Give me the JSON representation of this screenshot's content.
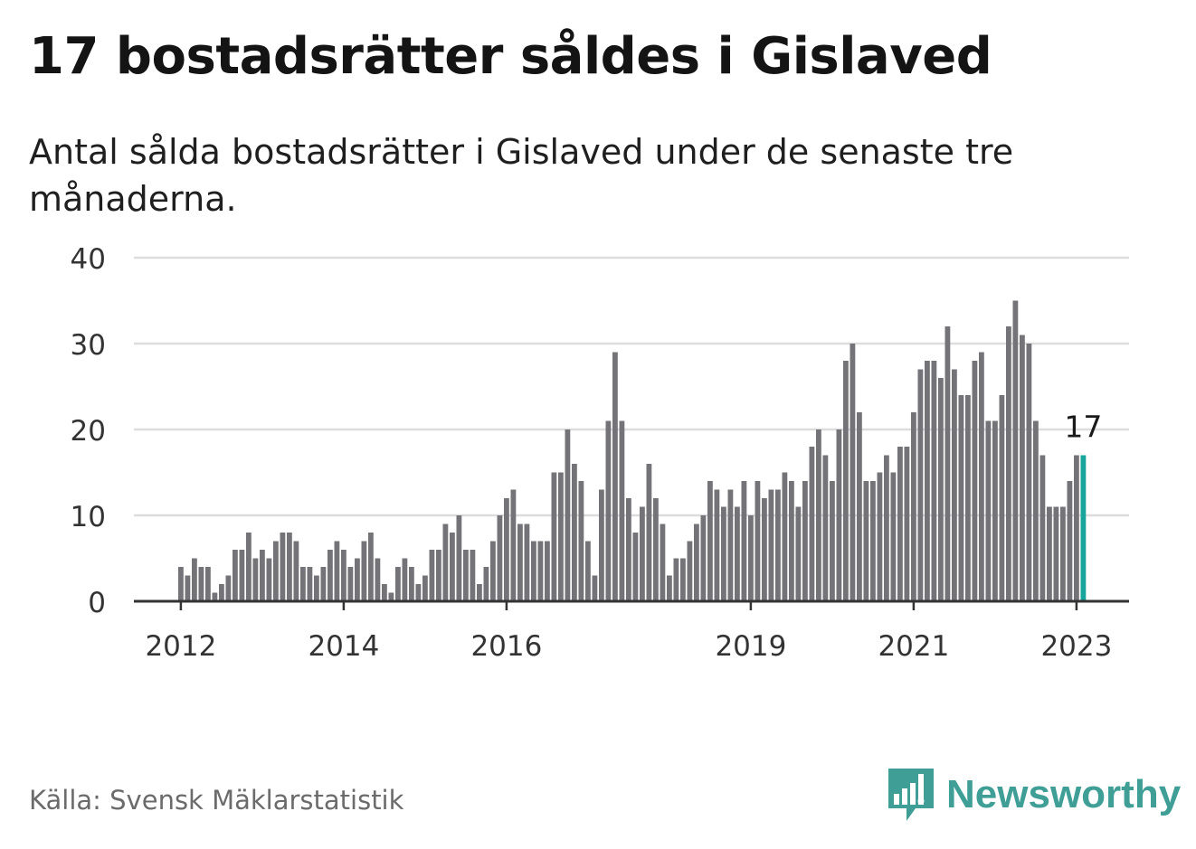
{
  "title": "17 bostadsrätter såldes i Gislaved",
  "subtitle": "Antal sålda bostadsrätter i Gislaved under de senaste tre månaderna.",
  "source": "Källa: Svensk Mäklarstatistik",
  "brand": {
    "name": "Newsworthy",
    "icon": "newsworthy-bar-chart-icon"
  },
  "colors": {
    "bar": "#747378",
    "highlight": "#17a59b",
    "grid": "#dcdcdc",
    "axis": "#333333",
    "brand": "#3f9f97"
  },
  "chart_data": {
    "type": "bar",
    "title": "",
    "xlabel": "",
    "ylabel": "",
    "ylim": [
      0,
      40
    ],
    "yticks": [
      0,
      10,
      20,
      30,
      40
    ],
    "grid": true,
    "start_month": "2012-01",
    "values": [
      4,
      3,
      5,
      4,
      4,
      1,
      2,
      3,
      6,
      6,
      8,
      5,
      6,
      5,
      7,
      8,
      8,
      7,
      4,
      4,
      3,
      4,
      6,
      7,
      6,
      4,
      5,
      7,
      8,
      5,
      2,
      1,
      4,
      5,
      4,
      2,
      3,
      6,
      6,
      9,
      8,
      10,
      6,
      6,
      2,
      4,
      7,
      10,
      12,
      13,
      9,
      9,
      7,
      7,
      7,
      15,
      15,
      20,
      16,
      14,
      7,
      3,
      13,
      21,
      29,
      21,
      12,
      8,
      11,
      16,
      12,
      9,
      3,
      5,
      5,
      7,
      9,
      10,
      14,
      13,
      11,
      13,
      11,
      14,
      10,
      14,
      12,
      13,
      13,
      15,
      14,
      11,
      14,
      18,
      20,
      17,
      14,
      20,
      28,
      30,
      22,
      14,
      14,
      15,
      17,
      15,
      18,
      18,
      22,
      27,
      28,
      28,
      26,
      32,
      27,
      24,
      24,
      28,
      29,
      21,
      21,
      24,
      32,
      35,
      31,
      30,
      21,
      17,
      11,
      11,
      11,
      14,
      17,
      17
    ],
    "xtick_labels": [
      {
        "label": "2012",
        "index": 0
      },
      {
        "label": "2014",
        "index": 24
      },
      {
        "label": "2016",
        "index": 48
      },
      {
        "label": "2019",
        "index": 84
      },
      {
        "label": "2021",
        "index": 108
      },
      {
        "label": "2023",
        "index": 132
      }
    ],
    "highlight": {
      "index": 133,
      "label": "17"
    }
  }
}
